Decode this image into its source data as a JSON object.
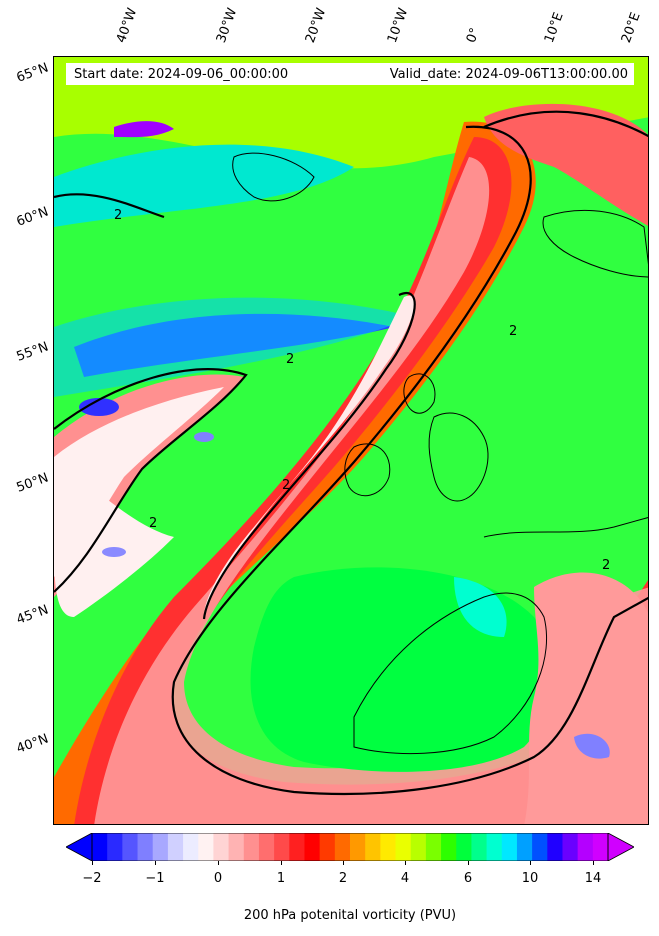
{
  "header": {
    "start_date": "Start date: 2024-09-06_00:00:00",
    "valid_date": "Valid_date: 2024-09-06T13:00:00.00"
  },
  "map": {
    "region": "North Atlantic / Western Europe",
    "lon_labels": [
      "40°W",
      "30°W",
      "20°W",
      "10°W",
      "0°",
      "10°E",
      "20°E"
    ],
    "lat_labels": [
      "65°N",
      "60°N",
      "55°N",
      "50°N",
      "45°N",
      "40°N"
    ],
    "contour_level": "2",
    "field": "200 hPa potential vorticity"
  },
  "colorbar": {
    "ticks": [
      "−2",
      "−1",
      "0",
      "1",
      "2",
      "4",
      "6",
      "10",
      "14"
    ],
    "label": "200 hPa potenital vorticity (PVU)",
    "colors": [
      "#0000ff",
      "#2a2aff",
      "#5555ff",
      "#7f7fff",
      "#a8a8ff",
      "#d0d0ff",
      "#ececff",
      "#fff2f2",
      "#ffd4d4",
      "#ffb3b3",
      "#ff9090",
      "#ff6e6e",
      "#ff4a4a",
      "#ff2020",
      "#ff0000",
      "#ff3a00",
      "#ff6a00",
      "#ff9900",
      "#ffc400",
      "#ffea00",
      "#eaff00",
      "#b8ff00",
      "#7aff00",
      "#2dff00",
      "#00ff3c",
      "#00ff8c",
      "#00ffd0",
      "#00e8ff",
      "#00a0ff",
      "#0050ff",
      "#2000ff",
      "#6a00ff",
      "#b400ff",
      "#d000ff"
    ]
  }
}
